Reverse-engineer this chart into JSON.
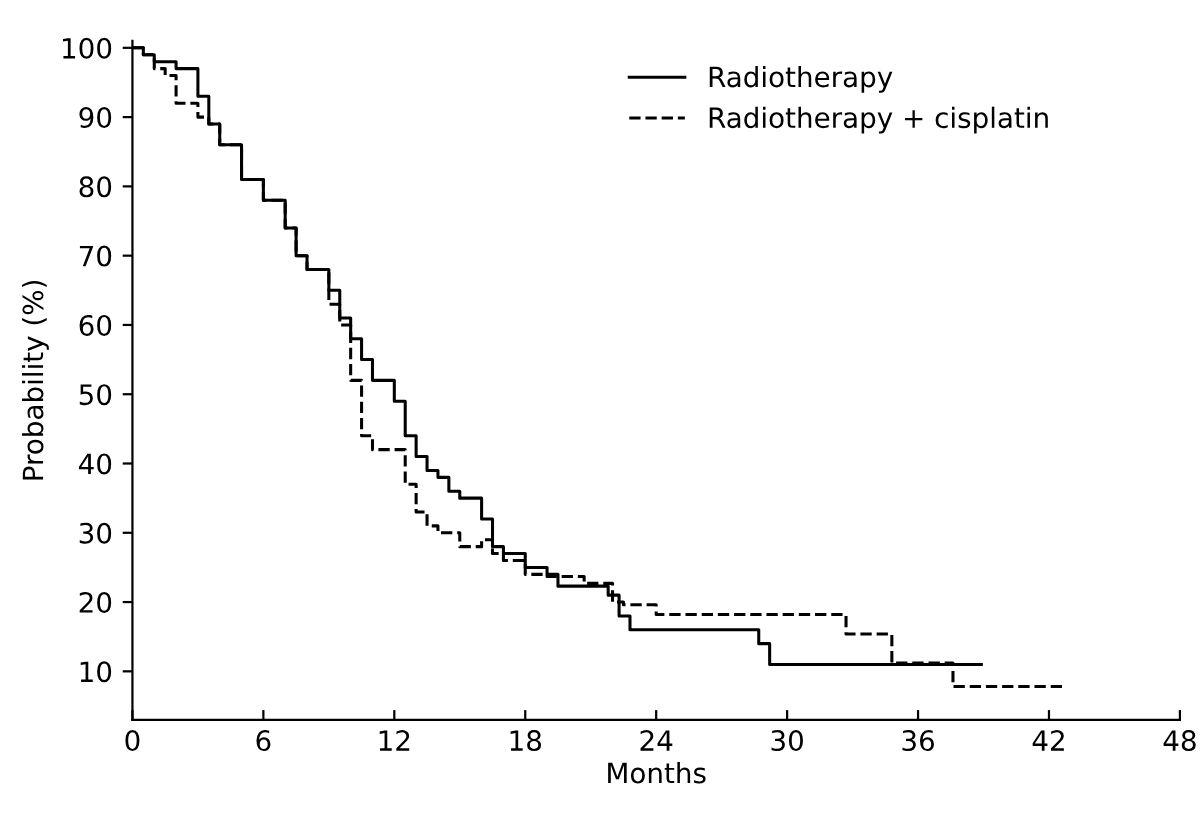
{
  "chart_data": {
    "type": "step",
    "xlabel": "Months",
    "ylabel": "Probability (%)",
    "xlim": [
      0,
      48
    ],
    "xticks": [
      0,
      6,
      12,
      18,
      24,
      30,
      36,
      42,
      48
    ],
    "ylim": [
      3,
      101
    ],
    "yticks": [
      10,
      20,
      30,
      40,
      50,
      60,
      70,
      80,
      90,
      100
    ],
    "grid": false,
    "legend": "top right",
    "marker": "none",
    "series": [
      {
        "name": "Radiotherapy",
        "color": "#000000",
        "line_style": "solid",
        "x": [
          0,
          0.5,
          1,
          2,
          3,
          3.5,
          4,
          5,
          6,
          7,
          7.5,
          8,
          9,
          9.5,
          10,
          10.5,
          11,
          12,
          12.5,
          13,
          13.5,
          14,
          14.5,
          15,
          16,
          16.5,
          17,
          18,
          19,
          19.5,
          21.8,
          22.3,
          22.8,
          28.7,
          29.2,
          38.9
        ],
        "values": [
          100,
          99,
          98,
          97,
          93,
          89,
          86,
          81,
          78,
          74,
          70,
          68,
          65,
          61,
          58,
          55,
          52,
          49,
          44,
          41,
          39,
          38,
          36,
          35,
          32,
          28,
          27,
          25,
          24,
          22.3,
          21,
          18,
          16,
          14,
          11,
          11
        ]
      },
      {
        "name": "Radiotherapy + cisplatin",
        "color": "#000000",
        "line_style": "dashed",
        "x": [
          0,
          0.5,
          1,
          1.5,
          2,
          3,
          3.5,
          4,
          5,
          6,
          7,
          7.5,
          8,
          9,
          9.5,
          10,
          10.5,
          11,
          12,
          12.5,
          13,
          13.5,
          14,
          15,
          16,
          16.5,
          17,
          18,
          19,
          20.7,
          22,
          22.5,
          24,
          32.7,
          34.8,
          37.6,
          42.8
        ],
        "values": [
          100,
          99,
          97,
          96,
          92,
          90,
          89,
          86,
          81,
          78,
          74,
          70,
          68,
          63,
          60,
          52,
          44,
          42,
          42,
          37,
          33,
          31,
          30,
          28,
          29,
          27,
          26,
          24,
          23.7,
          22.7,
          20,
          19.6,
          18.2,
          15.4,
          11.2,
          7.8,
          7.8
        ]
      }
    ]
  }
}
